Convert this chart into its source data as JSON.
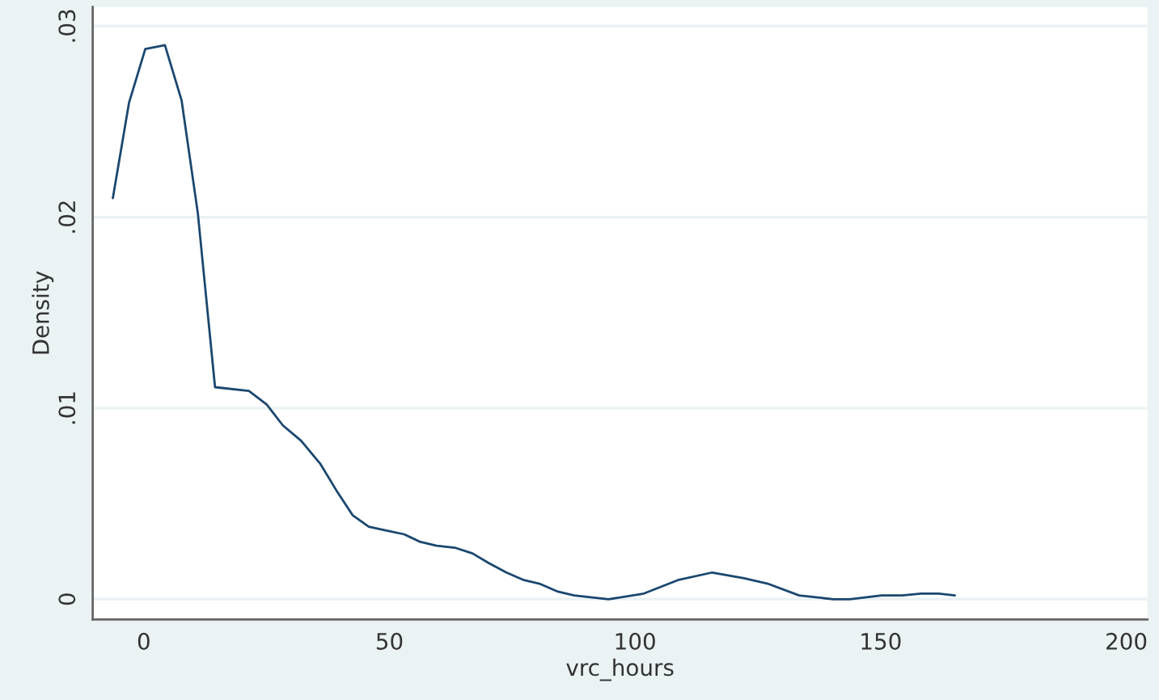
{
  "chart_data": {
    "type": "line",
    "xlabel": "vrc_hours",
    "ylabel": "Density",
    "x": [
      -6.3,
      -3.0,
      0.3,
      4.3,
      7.7,
      11.0,
      14.5,
      21.4,
      25.0,
      28.3,
      32.0,
      35.9,
      39.2,
      42.5,
      45.8,
      49.4,
      53.0,
      56.3,
      59.6,
      63.3,
      66.9,
      70.2,
      73.8,
      77.4,
      80.7,
      84.3,
      87.6,
      94.6,
      101.8,
      108.7,
      115.7,
      122.2,
      127.2,
      133.4,
      140.4,
      143.7,
      150.2,
      154.4,
      158.2,
      161.8,
      165.1
    ],
    "series": [
      {
        "color": "#1a476f",
        "values": [
          0.021,
          0.026,
          0.0288,
          0.029,
          0.0261,
          0.0202,
          0.0111,
          0.0109,
          0.0102,
          0.0091,
          0.0083,
          0.0071,
          0.0057,
          0.0044,
          0.0038,
          0.0036,
          0.0034,
          0.003,
          0.0028,
          0.0027,
          0.0024,
          0.0019,
          0.0014,
          0.001,
          0.0008,
          0.0004,
          0.0002,
          0.0,
          0.0003,
          0.001,
          0.0014,
          0.0011,
          0.0008,
          0.0002,
          0.0,
          0.0,
          0.0002,
          0.0002,
          0.0003,
          0.0003,
          0.0002
        ]
      }
    ],
    "xlim": [
      -10.4,
      204.3
    ],
    "ylim": [
      -0.00106,
      0.031
    ],
    "xticks": [
      0,
      50,
      100,
      150,
      200
    ],
    "yticks": [
      {
        "value": 0,
        "label": "0"
      },
      {
        "value": 0.01,
        "label": ".01"
      },
      {
        "value": 0.02,
        "label": ".02"
      },
      {
        "value": 0.03,
        "label": ".03"
      }
    ],
    "grid": "y",
    "marker": "none",
    "line_style": "solid"
  }
}
